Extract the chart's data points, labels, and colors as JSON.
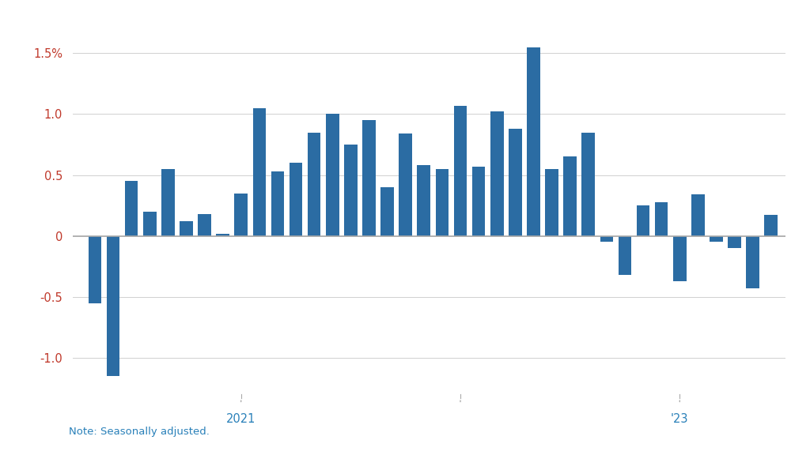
{
  "values": [
    -0.55,
    -1.15,
    0.45,
    0.2,
    0.55,
    0.12,
    0.18,
    0.02,
    0.35,
    1.05,
    0.53,
    0.6,
    0.85,
    1.0,
    0.75,
    0.95,
    0.4,
    0.84,
    0.58,
    0.55,
    1.07,
    0.57,
    1.02,
    0.88,
    1.55,
    0.55,
    0.65,
    0.85,
    -0.05,
    -0.32,
    0.25,
    0.28,
    -0.37,
    0.34,
    -0.05,
    -0.1,
    -0.43,
    0.17
  ],
  "bar_color": "#2b6ca3",
  "bg_color": "#ffffff",
  "ylim": [
    -1.35,
    1.75
  ],
  "yticks": [
    -1.0,
    -0.5,
    0.0,
    0.5,
    1.0,
    1.5
  ],
  "ytick_labels": [
    "-1.0",
    "-0.5",
    "0",
    "0.5",
    "1.0",
    "1.5%"
  ],
  "note": "Note: Seasonally adjusted.",
  "grid_color": "#d0d0d0",
  "zero_line_color": "#aaaaaa",
  "tick_color": "#c0392b",
  "label_color": "#2980b9",
  "note_color": "#2980b9"
}
